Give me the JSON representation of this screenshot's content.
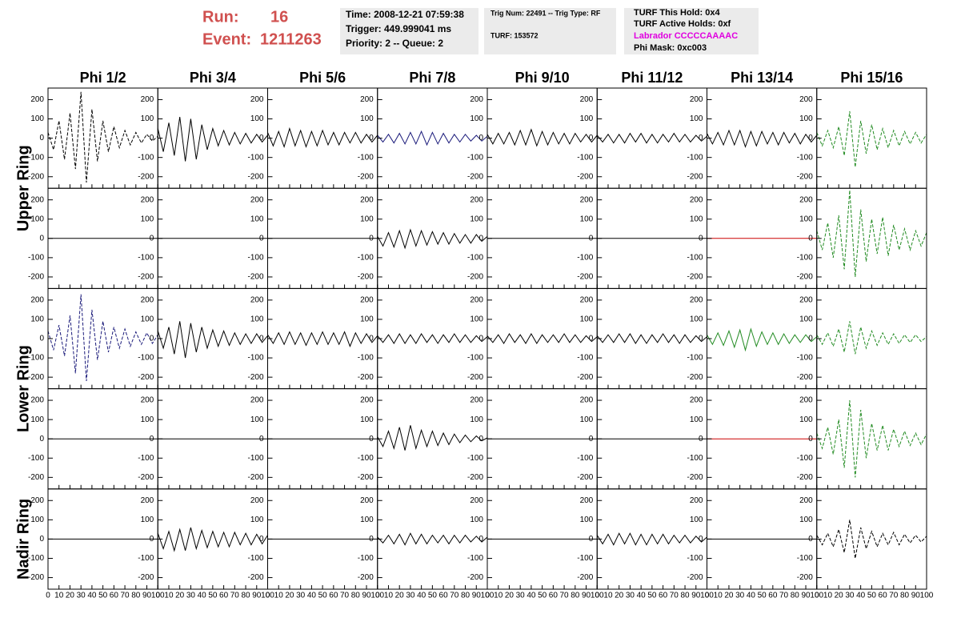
{
  "header": {
    "run_label": "Run:",
    "run": 16,
    "event_label": "Event:",
    "event": 1211263,
    "box1": [
      "Time: 2008-12-21 07:59:38",
      "Trigger: 449.999041 ms",
      "Priority: 2 -- Queue: 2"
    ],
    "box2": [
      "Trig Num: 22491 -- Trig Type: RF",
      "TURF: 153572"
    ],
    "box3": [
      "TURF This Hold: 0x4",
      "TURF Active Holds: 0xf",
      "Labrador CCCCCAAAAC",
      "Phi Mask: 0xc003"
    ]
  },
  "chart_data": {
    "type": "line",
    "columns": [
      "Phi 1/2",
      "Phi 3/4",
      "Phi 5/6",
      "Phi 7/8",
      "Phi 9/10",
      "Phi 11/12",
      "Phi 13/14",
      "Phi 15/16"
    ],
    "row_labels": [
      "Upper Ring",
      "Lower Ring",
      "Nadir Ring"
    ],
    "xlim": [
      0,
      100
    ],
    "ylim": [
      -260,
      260
    ],
    "xticks": [
      0,
      10,
      20,
      30,
      40,
      50,
      60,
      70,
      80,
      90,
      100
    ],
    "yticks": [
      -200,
      -100,
      0,
      100,
      200
    ],
    "x": [
      0,
      5,
      10,
      15,
      20,
      25,
      30,
      35,
      40,
      45,
      50,
      55,
      60,
      65,
      70,
      75,
      80,
      85,
      90,
      95,
      100
    ],
    "panels": [
      [
        {
          "color": "#000000",
          "dashed": true,
          "values": [
            30,
            -60,
            90,
            -110,
            130,
            -160,
            240,
            -230,
            150,
            -120,
            90,
            -70,
            60,
            -50,
            40,
            -35,
            30,
            -25,
            20,
            -15,
            10
          ]
        },
        {
          "color": "#000000",
          "dashed": false,
          "values": [
            50,
            -70,
            80,
            -90,
            110,
            -120,
            100,
            -110,
            70,
            -60,
            50,
            -40,
            40,
            -35,
            30,
            -30,
            25,
            -25,
            20,
            -20,
            15
          ]
        },
        {
          "color": "#000000",
          "dashed": false,
          "values": [
            30,
            -40,
            35,
            -45,
            50,
            -40,
            40,
            -45,
            35,
            -40,
            40,
            -35,
            30,
            -35,
            30,
            -25,
            30,
            -25,
            20,
            -20,
            15
          ]
        },
        {
          "color": "#1a1a7a",
          "dashed": false,
          "values": [
            15,
            -20,
            20,
            -25,
            25,
            -30,
            30,
            -30,
            35,
            -35,
            30,
            -30,
            25,
            -25,
            20,
            -20,
            20,
            -15,
            15,
            -15,
            10
          ]
        },
        {
          "color": "#000000",
          "dashed": false,
          "values": [
            20,
            -30,
            25,
            -30,
            30,
            -35,
            40,
            -35,
            45,
            -40,
            35,
            -35,
            30,
            -30,
            25,
            -30,
            25,
            -20,
            20,
            -20,
            15
          ]
        },
        {
          "color": "#000000",
          "dashed": false,
          "values": [
            15,
            -20,
            20,
            -25,
            20,
            -25,
            25,
            -20,
            25,
            -25,
            20,
            -25,
            20,
            -20,
            25,
            -20,
            20,
            -20,
            15,
            -15,
            10
          ]
        },
        {
          "color": "#000000",
          "dashed": false,
          "values": [
            25,
            -30,
            30,
            -35,
            40,
            -35,
            40,
            -45,
            35,
            -40,
            35,
            -30,
            30,
            -35,
            30,
            -25,
            25,
            -30,
            20,
            -20,
            15
          ]
        },
        {
          "color": "#228b22",
          "dashed": true,
          "values": [
            30,
            -40,
            40,
            -50,
            60,
            -90,
            140,
            -150,
            90,
            -80,
            70,
            -60,
            50,
            -50,
            40,
            -40,
            35,
            -30,
            30,
            -25,
            20
          ]
        }
      ],
      [
        {
          "color": "#000000",
          "dashed": false,
          "values": [
            0,
            0,
            0,
            0,
            0,
            0,
            0,
            0,
            0,
            0,
            0,
            0,
            0,
            0,
            0,
            0,
            0,
            0,
            0,
            0,
            0
          ]
        },
        {
          "color": "#000000",
          "dashed": false,
          "values": [
            0,
            0,
            0,
            0,
            0,
            0,
            0,
            0,
            0,
            0,
            0,
            0,
            0,
            0,
            0,
            0,
            0,
            0,
            0,
            0,
            0
          ]
        },
        {
          "color": "#000000",
          "dashed": false,
          "values": [
            0,
            0,
            0,
            0,
            0,
            0,
            0,
            0,
            0,
            0,
            0,
            0,
            0,
            0,
            0,
            0,
            0,
            0,
            0,
            0,
            0
          ]
        },
        {
          "color": "#000000",
          "dashed": false,
          "values": [
            10,
            -40,
            30,
            -45,
            40,
            -50,
            45,
            -40,
            40,
            -35,
            35,
            -30,
            30,
            -30,
            25,
            -25,
            20,
            -25,
            20,
            -15,
            10
          ]
        },
        {
          "color": "#000000",
          "dashed": false,
          "values": [
            0,
            0,
            0,
            0,
            0,
            0,
            0,
            0,
            0,
            0,
            0,
            0,
            0,
            0,
            0,
            0,
            0,
            0,
            0,
            0,
            0
          ]
        },
        {
          "color": "#000000",
          "dashed": false,
          "values": [
            0,
            0,
            0,
            0,
            0,
            0,
            0,
            0,
            0,
            0,
            0,
            0,
            0,
            0,
            0,
            0,
            0,
            0,
            0,
            0,
            0
          ]
        },
        {
          "color": "#cc0000",
          "dashed": false,
          "values": [
            0,
            0,
            0,
            0,
            0,
            0,
            0,
            0,
            0,
            0,
            0,
            0,
            0,
            0,
            0,
            0,
            0,
            0,
            0,
            0,
            0
          ]
        },
        {
          "color": "#228b22",
          "dashed": true,
          "values": [
            40,
            -60,
            80,
            -100,
            120,
            -160,
            250,
            -200,
            150,
            -120,
            100,
            -80,
            110,
            -90,
            70,
            -60,
            50,
            -60,
            40,
            -40,
            30
          ]
        }
      ],
      [
        {
          "color": "#1a1a7a",
          "dashed": true,
          "values": [
            40,
            -60,
            70,
            -90,
            120,
            -180,
            230,
            -220,
            150,
            -110,
            90,
            -70,
            60,
            -50,
            50,
            -40,
            35,
            -30,
            30,
            -25,
            20
          ]
        },
        {
          "color": "#000000",
          "dashed": false,
          "values": [
            40,
            -50,
            60,
            -80,
            90,
            -100,
            80,
            -70,
            60,
            -50,
            45,
            -40,
            40,
            -35,
            30,
            -30,
            25,
            -25,
            25,
            -20,
            15
          ]
        },
        {
          "color": "#000000",
          "dashed": false,
          "values": [
            20,
            -25,
            30,
            -30,
            35,
            -30,
            30,
            -35,
            30,
            -30,
            35,
            -30,
            30,
            -30,
            35,
            -40,
            30,
            -25,
            25,
            -20,
            15
          ]
        },
        {
          "color": "#000000",
          "dashed": false,
          "values": [
            15,
            -20,
            20,
            -25,
            25,
            -25,
            20,
            -25,
            25,
            -20,
            20,
            -25,
            20,
            -20,
            25,
            -20,
            20,
            -20,
            15,
            -15,
            10
          ]
        },
        {
          "color": "#000000",
          "dashed": false,
          "values": [
            15,
            -20,
            20,
            -25,
            25,
            -20,
            20,
            -25,
            25,
            -25,
            20,
            -20,
            20,
            -20,
            25,
            -20,
            20,
            -20,
            15,
            -15,
            10
          ]
        },
        {
          "color": "#000000",
          "dashed": false,
          "values": [
            15,
            -20,
            20,
            -20,
            25,
            -20,
            25,
            -25,
            20,
            -25,
            20,
            -20,
            25,
            -20,
            20,
            -25,
            20,
            -20,
            15,
            -15,
            10
          ]
        },
        {
          "color": "#228b22",
          "dashed": false,
          "values": [
            20,
            -30,
            30,
            -35,
            40,
            -45,
            45,
            -60,
            50,
            -40,
            35,
            -30,
            30,
            -30,
            25,
            -25,
            20,
            -20,
            20,
            -15,
            10
          ]
        },
        {
          "color": "#228b22",
          "dashed": true,
          "values": [
            20,
            -30,
            30,
            -40,
            50,
            -70,
            90,
            -80,
            60,
            -50,
            40,
            -35,
            30,
            -30,
            25,
            -25,
            20,
            -20,
            20,
            -15,
            10
          ]
        }
      ],
      [
        {
          "color": "#000000",
          "dashed": false,
          "values": [
            0,
            0,
            0,
            0,
            0,
            0,
            0,
            0,
            0,
            0,
            0,
            0,
            0,
            0,
            0,
            0,
            0,
            0,
            0,
            0,
            0
          ]
        },
        {
          "color": "#000000",
          "dashed": false,
          "values": [
            0,
            0,
            0,
            0,
            0,
            0,
            0,
            0,
            0,
            0,
            0,
            0,
            0,
            0,
            0,
            0,
            0,
            0,
            0,
            0,
            0
          ]
        },
        {
          "color": "#000000",
          "dashed": false,
          "values": [
            0,
            0,
            0,
            0,
            0,
            0,
            0,
            0,
            0,
            0,
            0,
            0,
            0,
            0,
            0,
            0,
            0,
            0,
            0,
            0,
            0
          ]
        },
        {
          "color": "#000000",
          "dashed": false,
          "values": [
            10,
            -40,
            40,
            -50,
            60,
            -60,
            70,
            -50,
            45,
            -40,
            40,
            -35,
            30,
            -30,
            25,
            -20,
            20,
            -15,
            15,
            -10,
            5
          ]
        },
        {
          "color": "#000000",
          "dashed": false,
          "values": [
            0,
            0,
            0,
            0,
            0,
            0,
            0,
            0,
            0,
            0,
            0,
            0,
            0,
            0,
            0,
            0,
            0,
            0,
            0,
            0,
            0
          ]
        },
        {
          "color": "#000000",
          "dashed": false,
          "values": [
            0,
            0,
            0,
            0,
            0,
            0,
            0,
            0,
            0,
            0,
            0,
            0,
            0,
            0,
            0,
            0,
            0,
            0,
            0,
            0,
            0
          ]
        },
        {
          "color": "#cc0000",
          "dashed": false,
          "values": [
            0,
            0,
            0,
            0,
            0,
            0,
            0,
            0,
            0,
            0,
            0,
            0,
            0,
            0,
            0,
            0,
            0,
            0,
            0,
            0,
            0
          ]
        },
        {
          "color": "#228b22",
          "dashed": true,
          "values": [
            30,
            -50,
            60,
            -80,
            100,
            -150,
            200,
            -200,
            150,
            -100,
            80,
            -60,
            70,
            -60,
            50,
            -40,
            40,
            -35,
            30,
            -30,
            25
          ]
        }
      ],
      [
        {
          "color": "#000000",
          "dashed": false,
          "values": [
            0,
            0,
            0,
            0,
            0,
            0,
            0,
            0,
            0,
            0,
            0,
            0,
            0,
            0,
            0,
            0,
            0,
            0,
            0,
            0,
            0
          ]
        },
        {
          "color": "#000000",
          "dashed": false,
          "values": [
            30,
            -50,
            40,
            -60,
            50,
            -60,
            60,
            -50,
            45,
            -45,
            40,
            -40,
            35,
            -40,
            35,
            -30,
            30,
            -30,
            25,
            -25,
            20
          ]
        },
        {
          "color": "#000000",
          "dashed": false,
          "values": [
            0,
            0,
            0,
            0,
            0,
            0,
            0,
            0,
            0,
            0,
            0,
            0,
            0,
            0,
            0,
            0,
            0,
            0,
            0,
            0,
            0
          ]
        },
        {
          "color": "#000000",
          "dashed": false,
          "values": [
            10,
            -20,
            20,
            -25,
            25,
            -30,
            30,
            -25,
            25,
            -25,
            20,
            -20,
            20,
            -25,
            20,
            -20,
            20,
            -15,
            15,
            -15,
            10
          ]
        },
        {
          "color": "#000000",
          "dashed": false,
          "values": [
            0,
            0,
            0,
            0,
            0,
            0,
            0,
            0,
            0,
            0,
            0,
            0,
            0,
            0,
            0,
            0,
            0,
            0,
            0,
            0,
            0
          ]
        },
        {
          "color": "#000000",
          "dashed": false,
          "values": [
            20,
            -25,
            25,
            -30,
            30,
            -25,
            30,
            -30,
            25,
            -30,
            25,
            -25,
            25,
            -25,
            20,
            -20,
            20,
            -20,
            15,
            -15,
            10
          ]
        },
        {
          "color": "#000000",
          "dashed": false,
          "values": [
            0,
            0,
            0,
            0,
            0,
            0,
            0,
            0,
            0,
            0,
            0,
            0,
            0,
            0,
            0,
            0,
            0,
            0,
            0,
            0,
            0
          ]
        },
        {
          "color": "#000000",
          "dashed": true,
          "values": [
            20,
            -30,
            30,
            -40,
            50,
            -70,
            100,
            -100,
            60,
            -50,
            40,
            -40,
            30,
            -30,
            35,
            -30,
            25,
            -20,
            20,
            -15,
            15
          ]
        }
      ]
    ]
  }
}
